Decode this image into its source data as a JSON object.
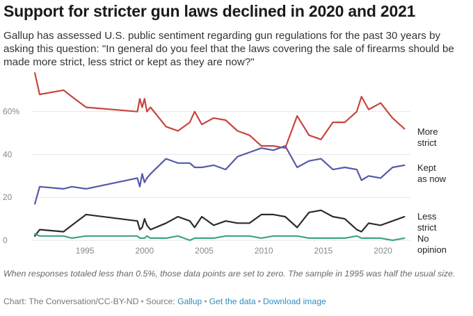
{
  "title": "Support for stricter gun laws declined in 2020 and 2021",
  "subtitle": "Gallup has assessed U.S. public sentiment regarding gun regulations for the past 30 years by asking this question: \"In general do you feel that the laws covering the sale of firearms should be made more strict, less strict or kept as they are now?\"",
  "footnote": "When responses totaled less than 0.5%, those data points are set to zero. The sample in 1995 was half the usual size.",
  "credits": {
    "prefix": "Chart: The Conversation/CC-BY-ND",
    "source_label": "Source:",
    "source_link": "Gallup",
    "get_data": "Get the data",
    "download": "Download image"
  },
  "colors": {
    "more_strict": "#c8453b",
    "kept_as_now": "#5559a8",
    "less_strict": "#2b2b2b",
    "no_opinion": "#3fa57c",
    "grid": "#e6e6e6",
    "tick_label": "#888888"
  },
  "chart_data": {
    "type": "line",
    "title": "",
    "xlabel": "",
    "ylabel": "",
    "xlim": [
      1990.5,
      2022.3
    ],
    "ylim": [
      0,
      79
    ],
    "x_ticks": [
      1995,
      2000,
      2005,
      2010,
      2015,
      2020
    ],
    "y_ticks": [
      {
        "value": 0,
        "label": "0"
      },
      {
        "value": 20,
        "label": "20"
      },
      {
        "value": 40,
        "label": "40"
      },
      {
        "value": 60,
        "label": "60%"
      }
    ],
    "grid": "horizontal",
    "legend": "direct labels at right end of lines",
    "x": [
      1990.8,
      1991.2,
      1993.2,
      1993.9,
      1995.1,
      1999.4,
      1999.6,
      1999.8,
      2000.0,
      2000.2,
      2000.5,
      2001.8,
      2002.8,
      2003.8,
      2004.2,
      2004.8,
      2005.8,
      2006.8,
      2007.8,
      2008.8,
      2009.8,
      2010.8,
      2011.8,
      2012.8,
      2013.8,
      2014.8,
      2015.8,
      2016.8,
      2017.8,
      2018.2,
      2018.8,
      2019.8,
      2020.8,
      2021.8
    ],
    "series": [
      {
        "name": "More strict",
        "label_lines": [
          "More",
          "strict"
        ],
        "color_key": "more_strict",
        "values": [
          78,
          68,
          70,
          67,
          62,
          60,
          66,
          62,
          66,
          60,
          62,
          53,
          51,
          55,
          60,
          54,
          57,
          56,
          51,
          49,
          44,
          44,
          43,
          58,
          49,
          47,
          55,
          55,
          60,
          67,
          61,
          64,
          57,
          52
        ]
      },
      {
        "name": "Kept as now",
        "label_lines": [
          "Kept",
          "as now"
        ],
        "color_key": "kept_as_now",
        "values": [
          17,
          25,
          24,
          25,
          24,
          29,
          25,
          31,
          27,
          29,
          31,
          38,
          36,
          36,
          34,
          34,
          35,
          33,
          39,
          41,
          43,
          42,
          44,
          34,
          37,
          38,
          33,
          34,
          33,
          28,
          30,
          29,
          34,
          35
        ]
      },
      {
        "name": "Less strict",
        "label_lines": [
          "Less",
          "strict"
        ],
        "color_key": "less_strict",
        "values": [
          2,
          5,
          4,
          7,
          12,
          9,
          5,
          6,
          10,
          7,
          5,
          8,
          11,
          9,
          6,
          11,
          7,
          9,
          8,
          8,
          12,
          12,
          11,
          6,
          13,
          14,
          11,
          10,
          5,
          4,
          8,
          7,
          9,
          11
        ]
      },
      {
        "name": "No opinion",
        "label_lines": [
          "No",
          "opinion"
        ],
        "color_key": "no_opinion",
        "values": [
          3,
          2,
          2,
          1,
          2,
          2,
          1,
          1,
          1,
          2,
          1,
          1,
          2,
          0,
          1,
          1,
          1,
          2,
          2,
          2,
          1,
          2,
          2,
          2,
          1,
          1,
          1,
          1,
          2,
          1,
          1,
          1,
          0,
          1
        ]
      }
    ]
  }
}
